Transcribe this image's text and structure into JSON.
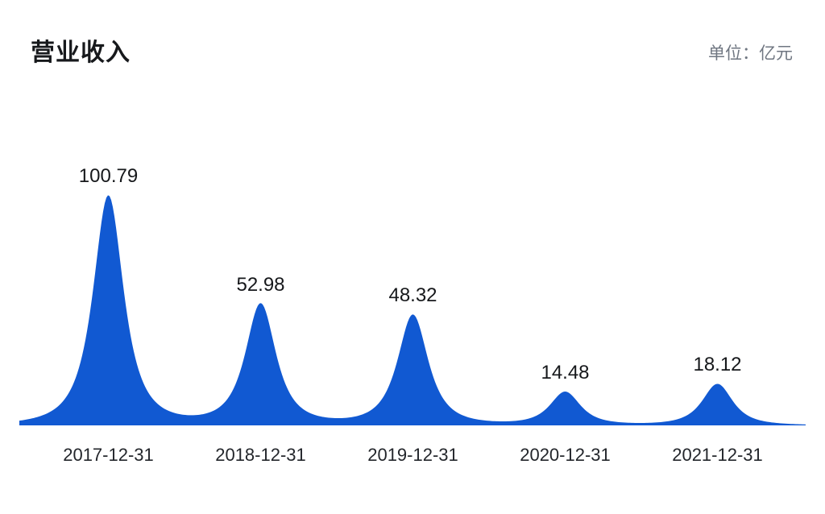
{
  "header": {
    "title": "营业收入",
    "unit_label": "单位：亿元"
  },
  "chart_data": {
    "type": "area",
    "subtype": "peak-mountains",
    "title": "营业收入",
    "unit": "亿元",
    "categories": [
      "2017-12-31",
      "2018-12-31",
      "2019-12-31",
      "2020-12-31",
      "2021-12-31"
    ],
    "values": [
      100.79,
      52.98,
      48.32,
      14.48,
      18.12
    ],
    "value_labels": [
      "100.79",
      "52.98",
      "48.32",
      "14.48",
      "18.12"
    ],
    "xlabel": "",
    "ylabel": "",
    "ylim": [
      0,
      110
    ],
    "grid": false,
    "legend": "none",
    "color": "#1159d2"
  },
  "colors": {
    "accent": "#1159d2",
    "title_text": "#17191c",
    "unit_text": "#6f7681",
    "value_text": "#16181b",
    "axis_text": "#23262b",
    "background": "#ffffff"
  }
}
